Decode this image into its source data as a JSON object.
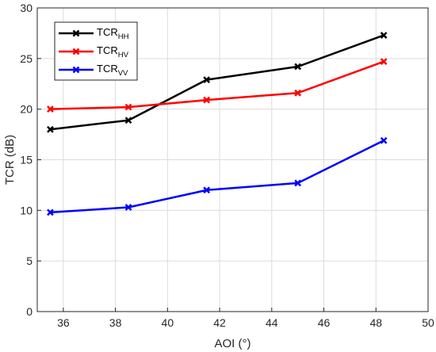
{
  "chart_data": {
    "type": "line",
    "xlabel": "AOI (°)",
    "ylabel": "TCR (dB)",
    "xlim": [
      35,
      50
    ],
    "ylim": [
      0,
      30
    ],
    "xticks": [
      36,
      38,
      40,
      42,
      44,
      46,
      48,
      50
    ],
    "yticks": [
      0,
      5,
      10,
      15,
      20,
      25,
      30
    ],
    "grid": true,
    "legend_position": "top-left",
    "x": [
      35.5,
      38.5,
      41.5,
      45,
      48.3
    ],
    "series": [
      {
        "name_main": "TCR",
        "name_sub": "HH",
        "color": "#000000",
        "marker": "x",
        "values": [
          18.0,
          18.9,
          22.9,
          24.2,
          27.3
        ]
      },
      {
        "name_main": "TCR",
        "name_sub": "HV",
        "color": "#ff0000",
        "marker": "x",
        "values": [
          20.0,
          20.2,
          20.9,
          21.6,
          24.7
        ]
      },
      {
        "name_main": "TCR",
        "name_sub": "VV",
        "color": "#0000ff",
        "marker": "x",
        "values": [
          9.8,
          10.3,
          12.0,
          12.7,
          16.9
        ]
      }
    ]
  }
}
